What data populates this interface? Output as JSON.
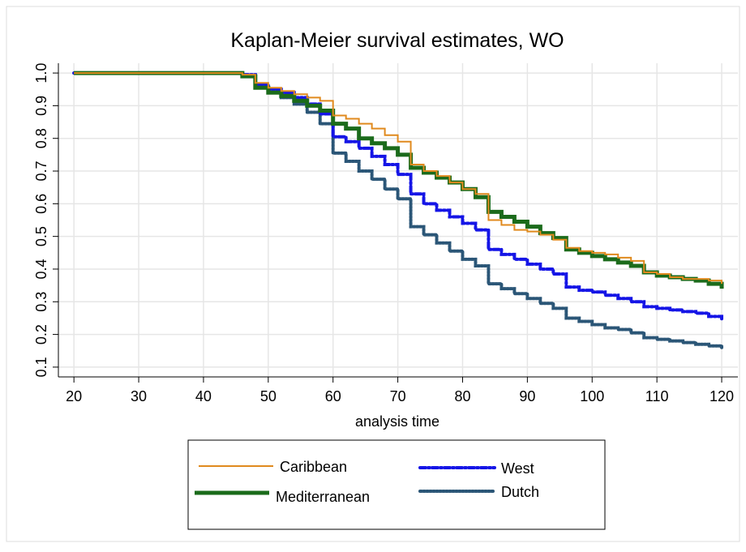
{
  "chart_data": {
    "type": "line",
    "step": true,
    "title": "Kaplan-Meier survival estimates, WO",
    "x_label": "analysis time",
    "x": [
      20,
      46,
      48,
      50,
      52,
      54,
      56,
      58,
      60,
      62,
      64,
      66,
      68,
      70,
      72,
      74,
      76,
      78,
      80,
      82,
      84,
      86,
      88,
      90,
      92,
      94,
      96,
      98,
      100,
      102,
      104,
      106,
      108,
      110,
      112,
      114,
      116,
      118,
      120
    ],
    "series": [
      {
        "name": "Caribbean",
        "color": "#e08a1e",
        "width": 2,
        "dash": "",
        "values": [
          1.0,
          0.995,
          0.97,
          0.955,
          0.945,
          0.935,
          0.925,
          0.915,
          0.87,
          0.86,
          0.845,
          0.83,
          0.81,
          0.79,
          0.72,
          0.7,
          0.685,
          0.665,
          0.645,
          0.63,
          0.55,
          0.535,
          0.52,
          0.515,
          0.505,
          0.49,
          0.465,
          0.455,
          0.45,
          0.445,
          0.435,
          0.425,
          0.39,
          0.385,
          0.375,
          0.37,
          0.37,
          0.365,
          0.355
        ]
      },
      {
        "name": "Mediterranean",
        "color": "#1b6b1b",
        "width": 5,
        "dash": "",
        "values": [
          1.0,
          0.99,
          0.955,
          0.94,
          0.93,
          0.915,
          0.9,
          0.885,
          0.845,
          0.83,
          0.8,
          0.785,
          0.77,
          0.75,
          0.71,
          0.695,
          0.68,
          0.665,
          0.645,
          0.62,
          0.575,
          0.56,
          0.545,
          0.53,
          0.51,
          0.495,
          0.46,
          0.45,
          0.44,
          0.43,
          0.42,
          0.41,
          0.39,
          0.38,
          0.375,
          0.37,
          0.365,
          0.355,
          0.34
        ]
      },
      {
        "name": "West",
        "color": "#1515e6",
        "width": 4,
        "dash": "7 3 2 3",
        "values": [
          1.0,
          0.995,
          0.965,
          0.95,
          0.94,
          0.925,
          0.905,
          0.875,
          0.805,
          0.79,
          0.77,
          0.745,
          0.72,
          0.69,
          0.63,
          0.6,
          0.58,
          0.56,
          0.54,
          0.52,
          0.46,
          0.445,
          0.43,
          0.415,
          0.4,
          0.385,
          0.345,
          0.335,
          0.33,
          0.32,
          0.31,
          0.3,
          0.285,
          0.28,
          0.275,
          0.27,
          0.265,
          0.255,
          0.245
        ]
      },
      {
        "name": "Dutch",
        "color": "#2b5677",
        "width": 4,
        "dash": "2 2",
        "values": [
          1.0,
          0.99,
          0.955,
          0.94,
          0.925,
          0.905,
          0.88,
          0.845,
          0.755,
          0.73,
          0.7,
          0.675,
          0.645,
          0.615,
          0.53,
          0.505,
          0.48,
          0.455,
          0.43,
          0.41,
          0.355,
          0.34,
          0.325,
          0.31,
          0.295,
          0.28,
          0.25,
          0.24,
          0.23,
          0.22,
          0.215,
          0.205,
          0.19,
          0.185,
          0.18,
          0.175,
          0.17,
          0.165,
          0.16
        ]
      }
    ],
    "xlim": [
      17.6,
      122.5
    ],
    "xticks": [
      20,
      30,
      40,
      50,
      60,
      70,
      80,
      90,
      100,
      110,
      120
    ],
    "ylim": [
      0.07,
      1.03
    ],
    "yticks": [
      {
        "value": 1,
        "label": "1.0"
      },
      0.9,
      0.8,
      0.7,
      0.6,
      0.5,
      0.4,
      0.3,
      0.2,
      0.1
    ],
    "grid": true,
    "legend": "bottom"
  }
}
